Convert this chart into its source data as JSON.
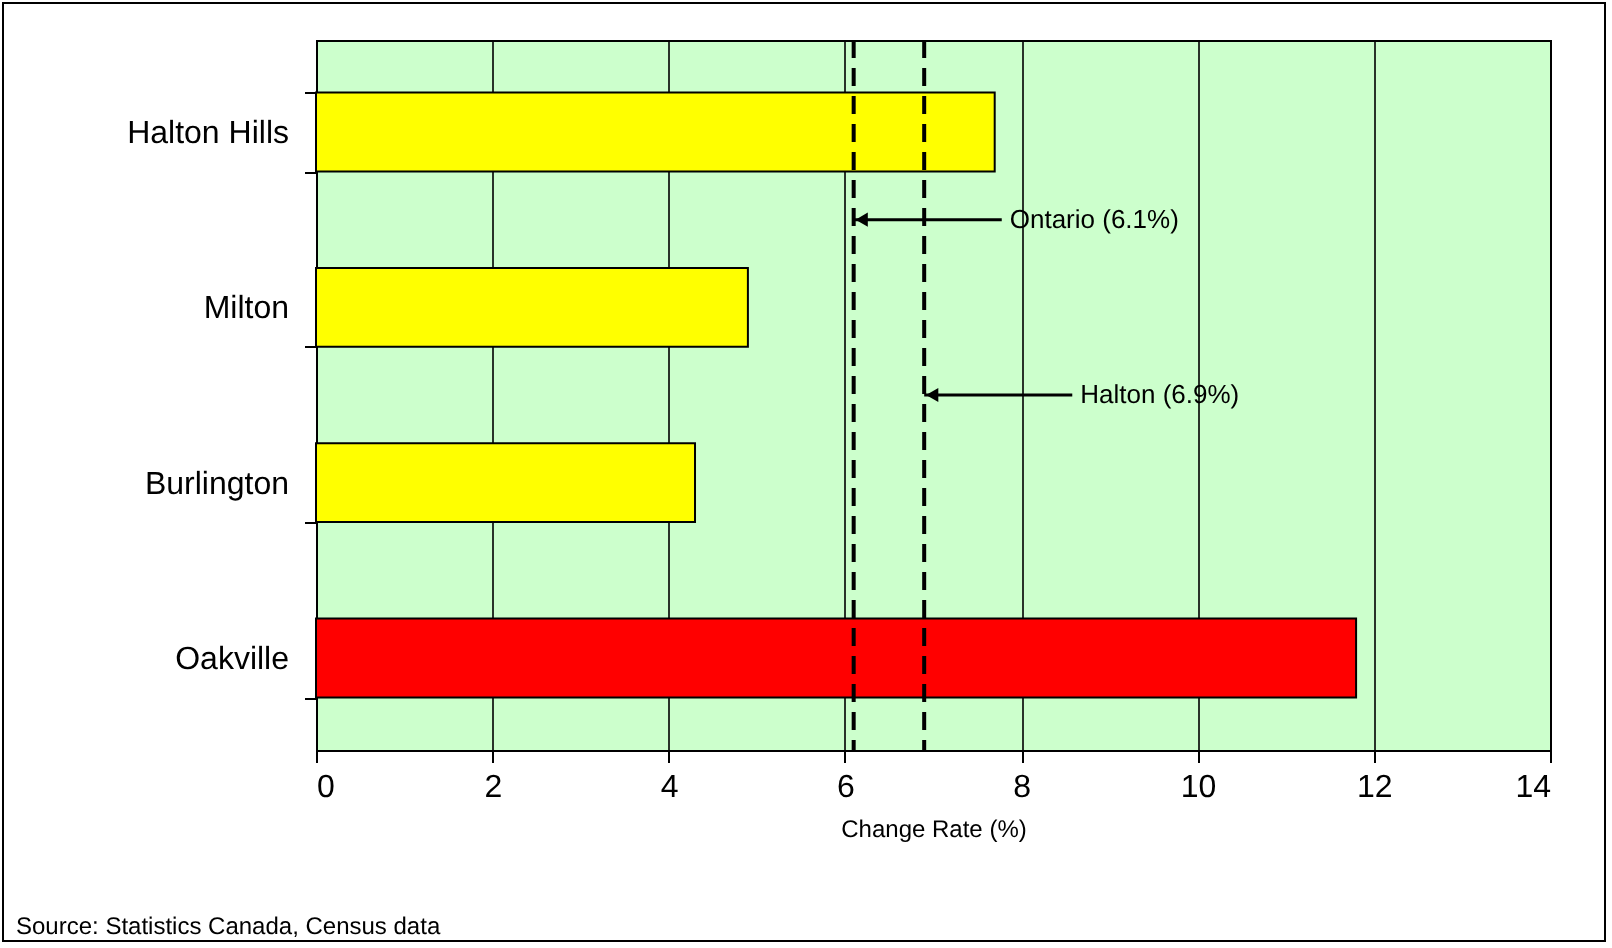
{
  "chart_data": {
    "type": "bar",
    "orientation": "horizontal",
    "categories": [
      "Halton Hills",
      "Milton",
      "Burlington",
      "Oakville"
    ],
    "values": [
      7.7,
      4.9,
      4.3,
      11.8
    ],
    "colors": [
      "#ffff00",
      "#ffff00",
      "#ffff00",
      "#ff0000"
    ],
    "xlabel": "Change Rate (%)",
    "xlim": [
      0,
      14
    ],
    "xticks": [
      0,
      2,
      4,
      6,
      8,
      10,
      12,
      14
    ],
    "grid": "x",
    "ref_lines": [
      {
        "axis": "x",
        "value": 6.1,
        "label": "Ontario (6.1%)",
        "line_style": "dashed"
      },
      {
        "axis": "x",
        "value": 6.9,
        "label": "Halton (6.9%)",
        "line_style": "dashed"
      }
    ],
    "annotations": [
      "Source: Statistics Canada, Census data"
    ]
  }
}
